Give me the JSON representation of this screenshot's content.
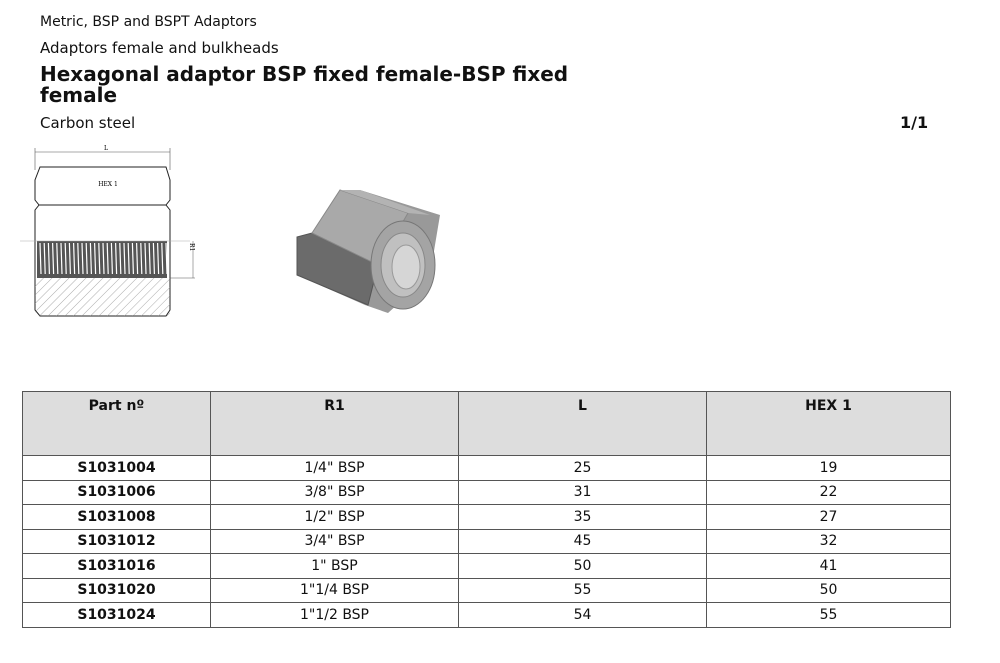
{
  "breadcrumb": {
    "category": "Metric, BSP and BSPT Adaptors",
    "subcategory": "Adaptors female and bulkheads"
  },
  "title": "Hexagonal adaptor  BSP fixed female-BSP fixed female",
  "material": "Carbon steel",
  "page_indicator": "1/1",
  "drawing": {
    "dim_length": "L",
    "dim_hex": "HEX 1",
    "dim_thread": "R1"
  },
  "table": {
    "headers": [
      "Part nº",
      "R1",
      "L",
      "HEX 1"
    ],
    "rows": [
      [
        "S1031004",
        "1/4\" BSP",
        "25",
        "19"
      ],
      [
        "S1031006",
        "3/8\" BSP",
        "31",
        "22"
      ],
      [
        "S1031008",
        "1/2\" BSP",
        "35",
        "27"
      ],
      [
        "S1031012",
        "3/4\" BSP",
        "45",
        "32"
      ],
      [
        "S1031016",
        "1\" BSP",
        "50",
        "41"
      ],
      [
        "S1031020",
        "1\"1/4 BSP",
        "55",
        "50"
      ],
      [
        "S1031024",
        "1\"1/2 BSP",
        "54",
        "55"
      ]
    ]
  }
}
